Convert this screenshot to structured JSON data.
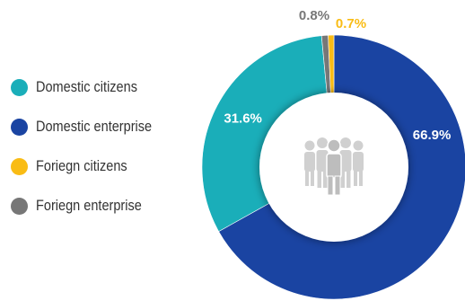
{
  "chart_data": {
    "type": "pie",
    "variant": "donut",
    "categories": [
      "Domestic citizens",
      "Domestic enterprise",
      "Foriegn citizens",
      "Foriegn enterprise"
    ],
    "values": [
      31.6,
      66.9,
      0.7,
      0.8
    ],
    "data_labels": [
      "31.6%",
      "66.9%",
      "0.7%",
      "0.8%"
    ],
    "colors": [
      "#1AAEB9",
      "#1A44A2",
      "#F9BC15",
      "#777777"
    ],
    "legend_position": "left",
    "center_icon": "people-group-icon"
  }
}
